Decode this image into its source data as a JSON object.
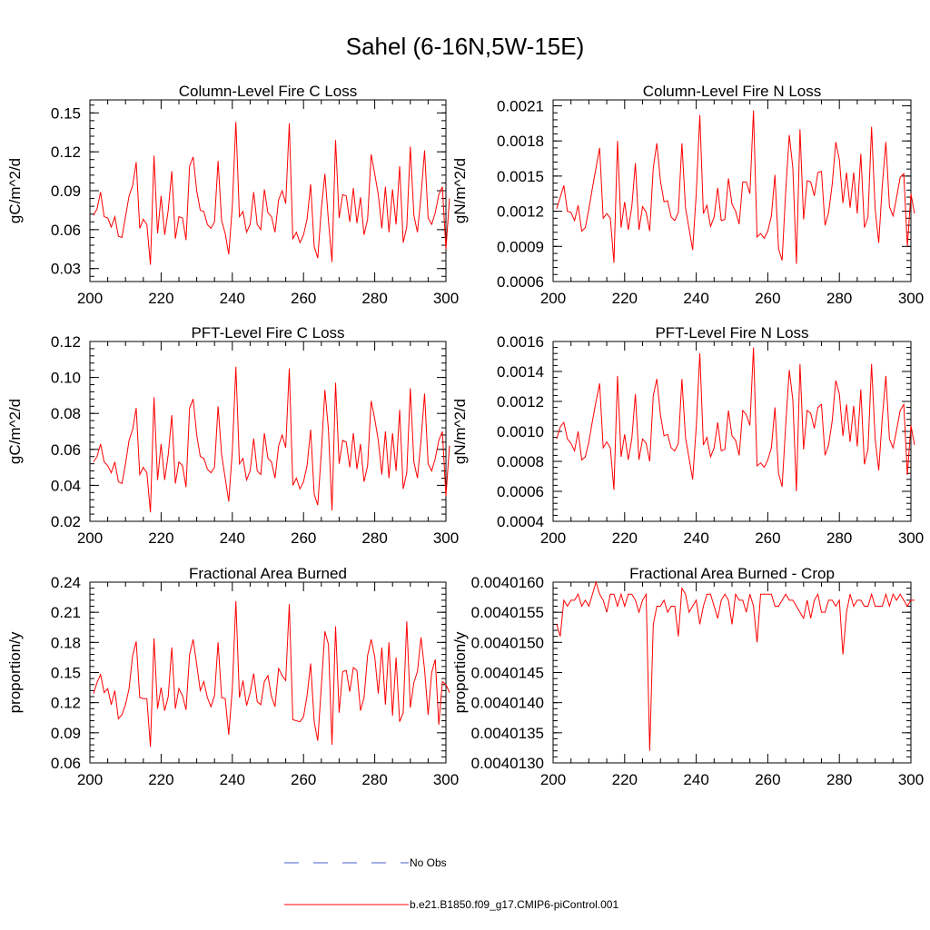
{
  "title": "Sahel (6-16N,5W-15E)",
  "colors": {
    "series": "#ff0000",
    "obs": "#4a5fcf",
    "axis": "#000000"
  },
  "legend": {
    "items": [
      {
        "label": "No Obs",
        "style": "dashed",
        "color": "#4a5fcf"
      },
      {
        "label": "b.e21.B1850.f09_g17.CMIP6-piControl.001",
        "style": "solid",
        "color": "#ff0000"
      }
    ]
  },
  "chart_data": [
    {
      "type": "line",
      "title": "Column-Level Fire C Loss",
      "ylabel": "gC/m^2/d",
      "xlim": [
        200,
        300
      ],
      "ylim": [
        0.02,
        0.16
      ],
      "xticks": [
        200,
        220,
        240,
        260,
        280,
        300
      ],
      "yticks": [
        0.03,
        0.06,
        0.09,
        0.12,
        0.15
      ],
      "ytick_labels": [
        "0.03",
        "0.06",
        "0.09",
        "0.12",
        "0.15"
      ],
      "x_start": 201,
      "series": [
        {
          "name": "b.e21.B1850.f09_g17.CMIP6-piControl.001",
          "values": [
            0.071,
            0.076,
            0.089,
            0.07,
            0.069,
            0.062,
            0.07,
            0.055,
            0.054,
            0.07,
            0.086,
            0.094,
            0.112,
            0.061,
            0.068,
            0.064,
            0.033,
            0.117,
            0.057,
            0.086,
            0.056,
            0.075,
            0.105,
            0.053,
            0.07,
            0.069,
            0.052,
            0.109,
            0.116,
            0.09,
            0.075,
            0.074,
            0.064,
            0.061,
            0.066,
            0.113,
            0.067,
            0.057,
            0.041,
            0.078,
            0.143,
            0.07,
            0.074,
            0.058,
            0.064,
            0.089,
            0.064,
            0.06,
            0.091,
            0.073,
            0.07,
            0.058,
            0.083,
            0.09,
            0.08,
            0.142,
            0.053,
            0.058,
            0.05,
            0.056,
            0.068,
            0.095,
            0.047,
            0.038,
            0.076,
            0.103,
            0.067,
            0.035,
            0.129,
            0.069,
            0.087,
            0.086,
            0.066,
            0.092,
            0.065,
            0.085,
            0.056,
            0.068,
            0.118,
            0.103,
            0.087,
            0.061,
            0.093,
            0.058,
            0.091,
            0.064,
            0.109,
            0.05,
            0.062,
            0.124,
            0.071,
            0.058,
            0.086,
            0.121,
            0.069,
            0.064,
            0.073,
            0.087,
            0.093,
            0.045,
            0.084
          ]
        }
      ]
    },
    {
      "type": "line",
      "title": "Column-Level Fire N Loss",
      "ylabel": "gN/m^2/d",
      "xlim": [
        200,
        300
      ],
      "ylim": [
        0.0006,
        0.00215
      ],
      "xticks": [
        200,
        220,
        240,
        260,
        280,
        300
      ],
      "yticks": [
        0.0006,
        0.0009,
        0.0012,
        0.0015,
        0.0018,
        0.0021
      ],
      "ytick_labels": [
        "0.0006",
        "0.0009",
        "0.0012",
        "0.0015",
        "0.0018",
        "0.0021"
      ],
      "x_start": 201,
      "series": [
        {
          "name": "b.e21.B1850.f09_g17.CMIP6-piControl.001",
          "values": [
            0.00122,
            0.00132,
            0.00142,
            0.0012,
            0.00119,
            0.00112,
            0.00125,
            0.00103,
            0.00106,
            0.00122,
            0.0014,
            0.00157,
            0.00174,
            0.00114,
            0.00118,
            0.00114,
            0.00076,
            0.0018,
            0.00106,
            0.00128,
            0.00104,
            0.00124,
            0.00161,
            0.00104,
            0.00124,
            0.00119,
            0.00103,
            0.00157,
            0.00178,
            0.00146,
            0.00128,
            0.00129,
            0.00115,
            0.00112,
            0.00119,
            0.00178,
            0.00123,
            0.00105,
            0.00087,
            0.00135,
            0.00202,
            0.00118,
            0.00125,
            0.00107,
            0.00115,
            0.0014,
            0.00112,
            0.00113,
            0.00148,
            0.00126,
            0.0012,
            0.00109,
            0.00145,
            0.00145,
            0.00135,
            0.00206,
            0.00098,
            0.00101,
            0.00097,
            0.00103,
            0.00116,
            0.00151,
            0.00088,
            0.00078,
            0.00137,
            0.00185,
            0.00157,
            0.00075,
            0.0019,
            0.00113,
            0.00146,
            0.00145,
            0.00133,
            0.00153,
            0.00154,
            0.00108,
            0.00119,
            0.00143,
            0.00179,
            0.00164,
            0.00127,
            0.00153,
            0.00123,
            0.00153,
            0.00118,
            0.00169,
            0.00106,
            0.00115,
            0.00192,
            0.00122,
            0.00093,
            0.00142,
            0.00179,
            0.00124,
            0.00116,
            0.00132,
            0.00149,
            0.00152,
            0.0009,
            0.00135,
            0.00118
          ]
        }
      ]
    },
    {
      "type": "line",
      "title": "PFT-Level Fire C Loss",
      "ylabel": "gC/m^2/d",
      "xlim": [
        200,
        300
      ],
      "ylim": [
        0.02,
        0.12
      ],
      "xticks": [
        200,
        220,
        240,
        260,
        280,
        300
      ],
      "yticks": [
        0.02,
        0.04,
        0.06,
        0.08,
        0.1,
        0.12
      ],
      "ytick_labels": [
        "0.02",
        "0.04",
        "0.06",
        "0.08",
        "0.10",
        "0.12"
      ],
      "x_start": 201,
      "series": [
        {
          "name": "b.e21.B1850.f09_g17.CMIP6-piControl.001",
          "values": [
            0.053,
            0.056,
            0.063,
            0.053,
            0.051,
            0.047,
            0.053,
            0.042,
            0.041,
            0.052,
            0.065,
            0.071,
            0.083,
            0.046,
            0.05,
            0.047,
            0.025,
            0.089,
            0.043,
            0.063,
            0.043,
            0.057,
            0.079,
            0.041,
            0.053,
            0.051,
            0.039,
            0.083,
            0.088,
            0.068,
            0.056,
            0.055,
            0.049,
            0.047,
            0.05,
            0.084,
            0.057,
            0.044,
            0.031,
            0.059,
            0.106,
            0.052,
            0.055,
            0.043,
            0.048,
            0.066,
            0.048,
            0.046,
            0.069,
            0.055,
            0.053,
            0.044,
            0.062,
            0.068,
            0.061,
            0.105,
            0.04,
            0.044,
            0.038,
            0.042,
            0.051,
            0.071,
            0.035,
            0.029,
            0.058,
            0.093,
            0.071,
            0.026,
            0.097,
            0.052,
            0.065,
            0.064,
            0.05,
            0.069,
            0.049,
            0.063,
            0.042,
            0.051,
            0.087,
            0.077,
            0.065,
            0.046,
            0.07,
            0.044,
            0.069,
            0.048,
            0.082,
            0.038,
            0.047,
            0.094,
            0.053,
            0.044,
            0.065,
            0.091,
            0.052,
            0.048,
            0.055,
            0.065,
            0.07,
            0.034,
            0.062
          ]
        }
      ]
    },
    {
      "type": "line",
      "title": "PFT-Level Fire N Loss",
      "ylabel": "gN/m^2/d",
      "xlim": [
        200,
        300
      ],
      "ylim": [
        0.0004,
        0.0016
      ],
      "xticks": [
        200,
        220,
        240,
        260,
        280,
        300
      ],
      "yticks": [
        0.0004,
        0.0006,
        0.0008,
        0.001,
        0.0012,
        0.0014,
        0.0016
      ],
      "ytick_labels": [
        "0.0004",
        "0.0006",
        "0.0008",
        "0.0010",
        "0.0012",
        "0.0014",
        "0.0016"
      ],
      "x_start": 201,
      "series": [
        {
          "name": "b.e21.B1850.f09_g17.CMIP6-piControl.001",
          "values": [
            0.00095,
            0.00103,
            0.00106,
            0.00095,
            0.00092,
            0.00087,
            0.001,
            0.00081,
            0.00083,
            0.00093,
            0.00107,
            0.0012,
            0.00132,
            0.00089,
            0.00093,
            0.00089,
            0.00061,
            0.00137,
            0.00083,
            0.00098,
            0.00081,
            0.00095,
            0.00125,
            0.00081,
            0.00095,
            0.00092,
            0.0008,
            0.00124,
            0.00135,
            0.00111,
            0.00097,
            0.00098,
            0.00089,
            0.00087,
            0.00092,
            0.00135,
            0.00096,
            0.00082,
            0.00068,
            0.00103,
            0.00152,
            0.00091,
            0.00096,
            0.00083,
            0.00089,
            0.00106,
            0.00087,
            0.00088,
            0.00114,
            0.00097,
            0.00094,
            0.00084,
            0.00114,
            0.00111,
            0.00104,
            0.00156,
            0.00077,
            0.00079,
            0.00076,
            0.00081,
            0.00089,
            0.00116,
            0.00072,
            0.00063,
            0.00104,
            0.00141,
            0.00121,
            0.0006,
            0.00145,
            0.00088,
            0.00114,
            0.00112,
            0.00102,
            0.00116,
            0.00118,
            0.00084,
            0.00091,
            0.00107,
            0.00134,
            0.00125,
            0.00097,
            0.00118,
            0.00093,
            0.00117,
            0.0009,
            0.00128,
            0.00078,
            0.00088,
            0.00145,
            0.00095,
            0.00074,
            0.00109,
            0.00137,
            0.00095,
            0.00089,
            0.00101,
            0.00114,
            0.00118,
            0.00071,
            0.00104,
            0.00091
          ]
        }
      ]
    },
    {
      "type": "line",
      "title": "Fractional Area Burned",
      "ylabel": "proportion/y",
      "xlim": [
        200,
        300
      ],
      "ylim": [
        0.06,
        0.24
      ],
      "xticks": [
        200,
        220,
        240,
        260,
        280,
        300
      ],
      "yticks": [
        0.06,
        0.09,
        0.12,
        0.15,
        0.18,
        0.21,
        0.24
      ],
      "ytick_labels": [
        "0.06",
        "0.09",
        "0.12",
        "0.15",
        "0.18",
        "0.21",
        "0.24"
      ],
      "x_start": 201,
      "series": [
        {
          "name": "b.e21.B1850.f09_g17.CMIP6-piControl.001",
          "values": [
            0.129,
            0.14,
            0.148,
            0.13,
            0.134,
            0.118,
            0.132,
            0.104,
            0.108,
            0.118,
            0.134,
            0.167,
            0.181,
            0.125,
            0.124,
            0.124,
            0.076,
            0.184,
            0.114,
            0.135,
            0.112,
            0.126,
            0.175,
            0.114,
            0.134,
            0.127,
            0.113,
            0.168,
            0.183,
            0.158,
            0.132,
            0.141,
            0.125,
            0.116,
            0.127,
            0.18,
            0.125,
            0.124,
            0.088,
            0.134,
            0.221,
            0.125,
            0.142,
            0.117,
            0.13,
            0.149,
            0.121,
            0.118,
            0.141,
            0.147,
            0.126,
            0.116,
            0.154,
            0.147,
            0.142,
            0.218,
            0.103,
            0.102,
            0.101,
            0.106,
            0.127,
            0.159,
            0.101,
            0.082,
            0.136,
            0.191,
            0.178,
            0.078,
            0.196,
            0.11,
            0.151,
            0.152,
            0.131,
            0.155,
            0.152,
            0.112,
            0.125,
            0.167,
            0.183,
            0.166,
            0.129,
            0.175,
            0.118,
            0.18,
            0.107,
            0.165,
            0.101,
            0.11,
            0.201,
            0.115,
            0.14,
            0.151,
            0.185,
            0.153,
            0.108,
            0.15,
            0.163,
            0.098,
            0.141,
            0.138,
            0.13
          ]
        }
      ]
    },
    {
      "type": "line",
      "title": "Fractional Area Burned - Crop",
      "ylabel": "proportion/y",
      "xlim": [
        200,
        300
      ],
      "ylim": [
        0.004013,
        0.004016
      ],
      "xticks": [
        200,
        220,
        240,
        260,
        280,
        300
      ],
      "yticks": [
        0.004013,
        0.0040135,
        0.004014,
        0.0040145,
        0.004015,
        0.0040155,
        0.004016
      ],
      "ytick_labels": [
        "0.0040130",
        "0.0040135",
        "0.0040140",
        "0.0040145",
        "0.0040150",
        "0.0040155",
        "0.0040160"
      ],
      "x_start": 201,
      "series": [
        {
          "name": "b.e21.B1850.f09_g17.CMIP6-piControl.001",
          "values": [
            0.0040153,
            0.0040151,
            0.0040157,
            0.0040156,
            0.0040157,
            0.0040157,
            0.0040158,
            0.0040156,
            0.0040157,
            0.0040156,
            0.0040158,
            0.004016,
            0.0040158,
            0.0040157,
            0.0040155,
            0.0040158,
            0.0040158,
            0.0040156,
            0.0040158,
            0.0040156,
            0.0040158,
            0.0040158,
            0.0040157,
            0.0040155,
            0.0040157,
            0.0040158,
            0.0040132,
            0.0040153,
            0.0040156,
            0.0040156,
            0.0040157,
            0.0040155,
            0.0040156,
            0.0040156,
            0.0040151,
            0.0040159,
            0.0040158,
            0.0040155,
            0.0040156,
            0.0040157,
            0.0040153,
            0.0040156,
            0.0040158,
            0.0040158,
            0.0040156,
            0.0040154,
            0.0040157,
            0.0040158,
            0.0040157,
            0.0040153,
            0.0040158,
            0.0040157,
            0.0040157,
            0.0040155,
            0.0040158,
            0.0040156,
            0.004015,
            0.0040158,
            0.0040158,
            0.0040158,
            0.0040158,
            0.0040156,
            0.0040156,
            0.0040157,
            0.0040158,
            0.0040157,
            0.0040157,
            0.0040156,
            0.0040155,
            0.0040154,
            0.0040157,
            0.0040154,
            0.0040157,
            0.0040158,
            0.0040155,
            0.0040155,
            0.0040157,
            0.0040157,
            0.0040156,
            0.0040157,
            0.0040148,
            0.0040155,
            0.0040158,
            0.0040156,
            0.0040157,
            0.0040157,
            0.0040156,
            0.0040156,
            0.0040158,
            0.0040156,
            0.0040156,
            0.0040156,
            0.0040158,
            0.0040156,
            0.0040158,
            0.0040157,
            0.0040158,
            0.0040157,
            0.0040156,
            0.0040157,
            0.0040157
          ]
        }
      ]
    }
  ]
}
